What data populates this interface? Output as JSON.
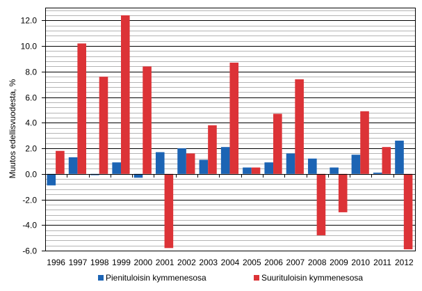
{
  "chart_data": {
    "type": "bar",
    "title": "",
    "xlabel": "",
    "ylabel": "Muutos edellisvuodesta, %",
    "ylim": [
      -6.0,
      13.0
    ],
    "yticks": [
      -6.0,
      -4.0,
      -2.0,
      0.0,
      2.0,
      4.0,
      6.0,
      8.0,
      10.0,
      12.0
    ],
    "ytick_labels": [
      "-6.0",
      "-4.0",
      "-2.0",
      "0.0",
      "2.0",
      "4.0",
      "6.0",
      "8.0",
      "10.0",
      "12.0"
    ],
    "minor_grid_step": 0.4,
    "grid": true,
    "legend_position": "bottom",
    "categories": [
      "1996",
      "1997",
      "1998",
      "1999",
      "2000",
      "2001",
      "2002",
      "2003",
      "2004",
      "2005",
      "2006",
      "2007",
      "2008",
      "2009",
      "2010",
      "2011",
      "2012"
    ],
    "series": [
      {
        "name": "Pienituloisin kymmenesosa",
        "color": "#1C64B4",
        "values": [
          -0.9,
          1.3,
          -0.1,
          0.9,
          -0.3,
          1.7,
          2.0,
          1.1,
          2.1,
          0.5,
          0.9,
          1.6,
          1.2,
          0.5,
          1.5,
          0.1,
          2.6
        ]
      },
      {
        "name": "Suurituloisin kymmenesosa",
        "color": "#DC3337",
        "values": [
          1.8,
          10.2,
          7.6,
          12.4,
          8.4,
          -5.8,
          1.6,
          3.8,
          8.7,
          0.5,
          4.7,
          7.4,
          -4.8,
          -3.0,
          4.9,
          2.1,
          -5.9
        ]
      }
    ]
  },
  "legend": {
    "items": [
      {
        "label": "Pienituloisin kymmenesosa",
        "color": "#1C64B4"
      },
      {
        "label": "Suurituloisin kymmenesosa",
        "color": "#DC3337"
      }
    ]
  }
}
